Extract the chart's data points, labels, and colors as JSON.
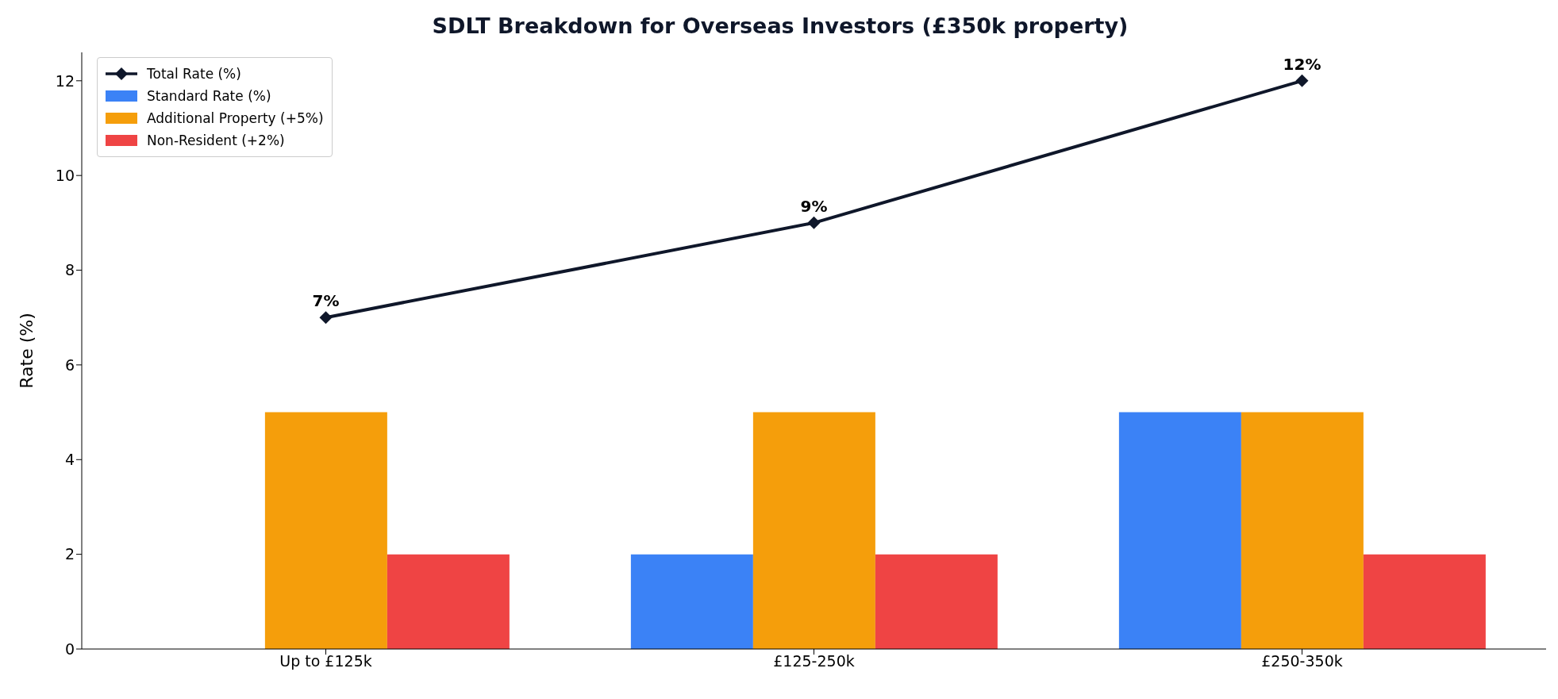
{
  "chart_data": {
    "type": "bar",
    "title": "SDLT Breakdown for Overseas Investors (£350k property)",
    "ylabel": "Rate (%)",
    "categories": [
      "Up to £125k",
      "£125-250k",
      "£250-350k"
    ],
    "series": [
      {
        "name": "Total Rate (%)",
        "type": "line",
        "color": "#0f172a",
        "values": [
          7,
          9,
          12
        ],
        "value_labels": [
          "7%",
          "9%",
          "12%"
        ],
        "marker": "diamond",
        "line_style": "solid"
      },
      {
        "name": "Standard Rate (%)",
        "color": "#3b82f6",
        "values": [
          0,
          2,
          5
        ]
      },
      {
        "name": "Additional Property (+5%)",
        "color": "#f59e0b",
        "values": [
          5,
          5,
          5
        ]
      },
      {
        "name": "Non-Resident (+2%)",
        "color": "#ef4444",
        "values": [
          2,
          2,
          2
        ]
      }
    ],
    "ylim": [
      0,
      12.6
    ],
    "yticks": [
      0,
      2,
      4,
      6,
      8,
      10,
      12
    ],
    "grid": false,
    "legend": "top left"
  }
}
